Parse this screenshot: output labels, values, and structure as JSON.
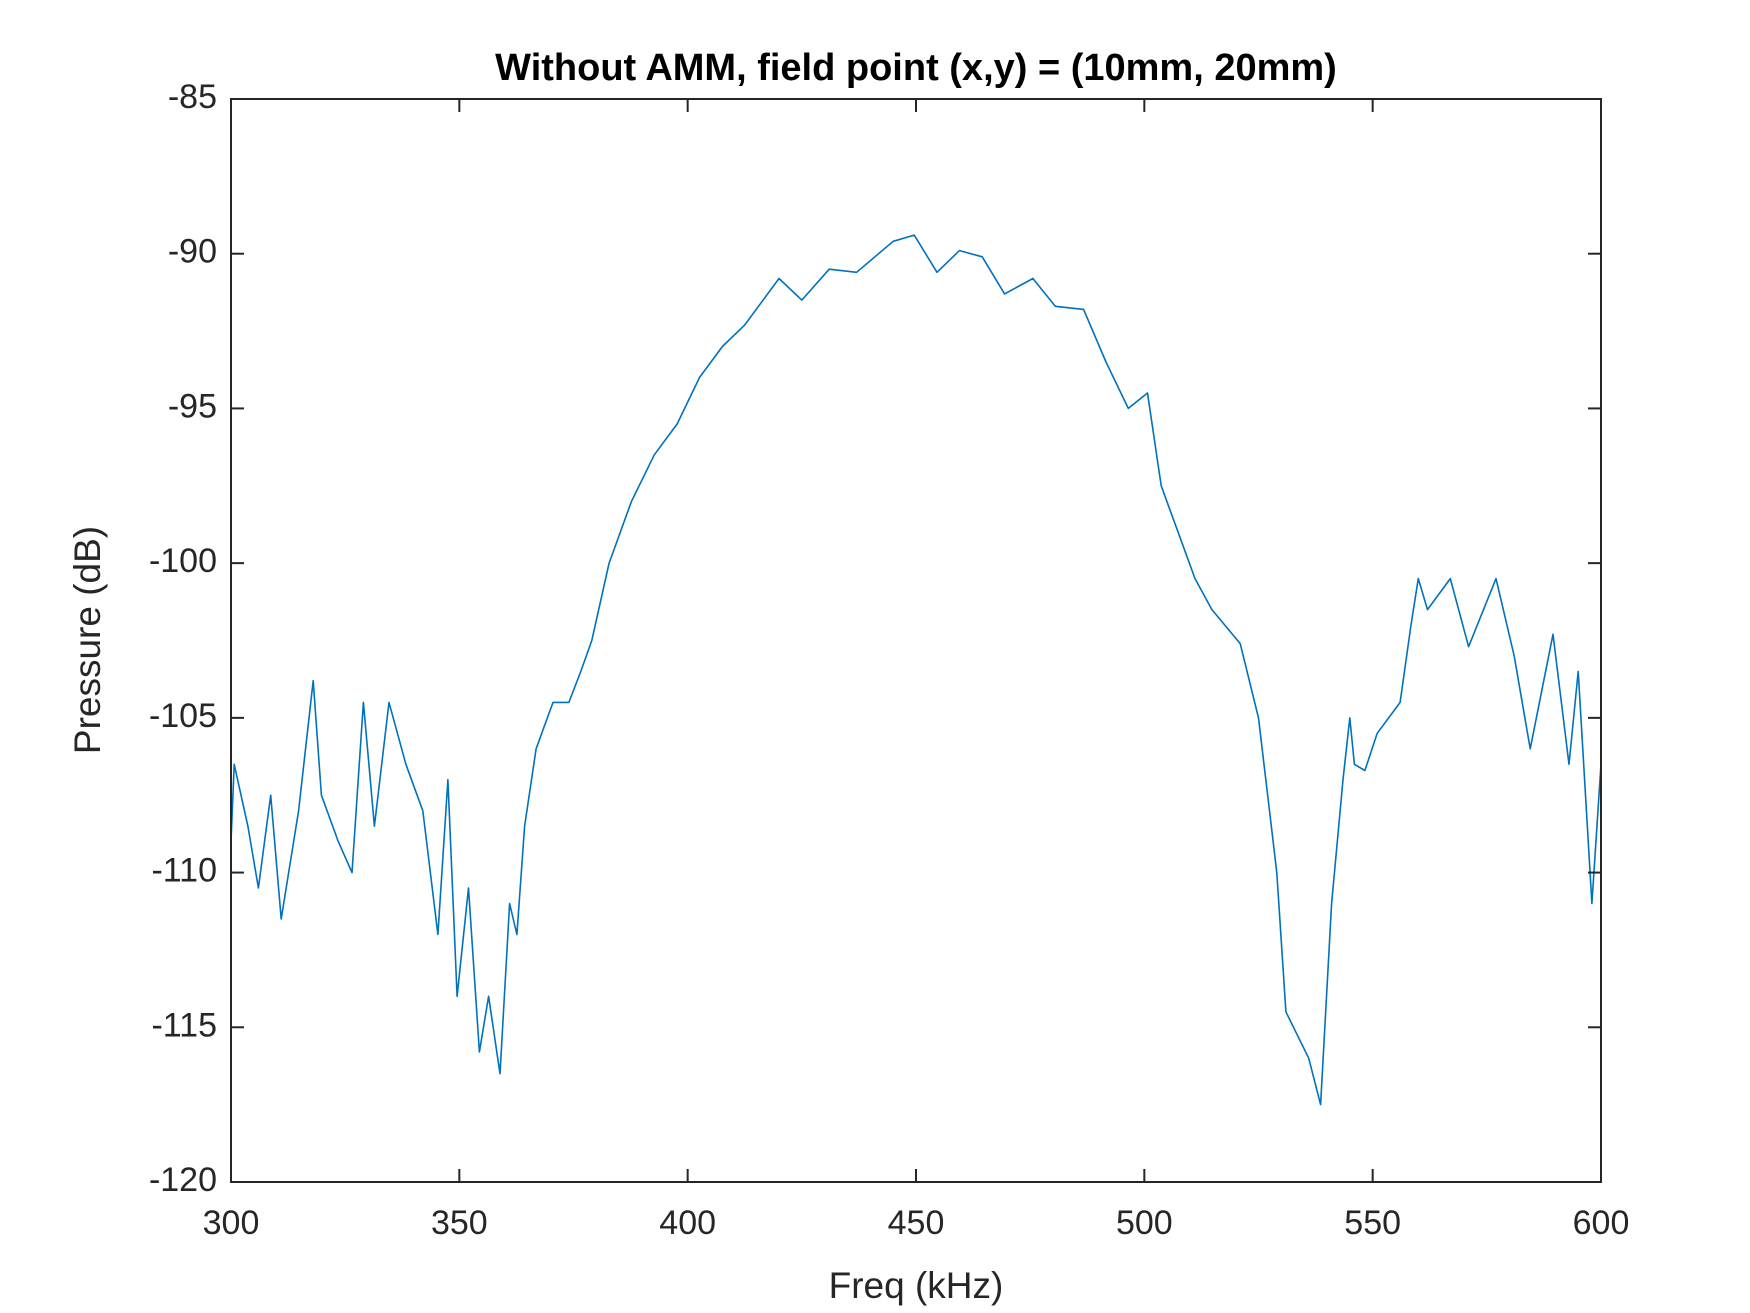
{
  "chart_data": {
    "type": "line",
    "title": "Without AMM, field point (x,y) = (10mm, 20mm)",
    "xlabel": "Freq (kHz)",
    "ylabel": "Pressure (dB)",
    "xlim": [
      300,
      600
    ],
    "ylim": [
      -120,
      -85
    ],
    "xticks": [
      300,
      350,
      400,
      450,
      500,
      550,
      600
    ],
    "yticks": [
      -120,
      -115,
      -110,
      -105,
      -100,
      -95,
      -90,
      -85
    ],
    "grid": false,
    "series": [
      {
        "color": "#0072bd",
        "x": [
          300,
          300.7,
          303.7,
          306,
          308.7,
          311,
          314.8,
          318,
          319.8,
          323.5,
          326.5,
          329,
          331.4,
          334.6,
          338.3,
          342,
          345.3,
          347.5,
          349.5,
          352,
          354.4,
          356.4,
          358.9,
          361,
          362.6,
          364.3,
          366.8,
          370.5,
          374,
          376.6,
          379,
          382.8,
          387.7,
          392.7,
          397.7,
          402.6,
          407.6,
          412.5,
          420,
          425,
          431,
          437,
          445,
          449.6,
          454.6,
          459.5,
          464.5,
          469.4,
          475.6,
          480.5,
          486.7,
          491.6,
          496.5,
          500.7,
          503.7,
          507.4,
          511.1,
          514.8,
          521,
          525,
          529,
          531,
          536,
          538.6,
          541,
          543.5,
          545,
          546,
          548.3,
          551,
          556,
          558.4,
          560,
          562,
          567,
          571,
          577,
          581,
          584.5,
          589.5,
          593,
          595,
          598,
          600
        ],
        "values": [
          -109,
          -106.5,
          -108.5,
          -110.5,
          -107.5,
          -111.5,
          -108,
          -103.8,
          -107.5,
          -109,
          -110,
          -104.5,
          -108.5,
          -104.5,
          -106.5,
          -108,
          -112,
          -107,
          -114,
          -110.5,
          -115.8,
          -114,
          -116.5,
          -111,
          -112,
          -108.5,
          -106,
          -104.5,
          -104.5,
          -103.5,
          -102.5,
          -100,
          -98,
          -96.5,
          -95.5,
          -94,
          -93,
          -92.3,
          -90.8,
          -91.5,
          -90.5,
          -90.6,
          -89.6,
          -89.4,
          -90.6,
          -89.9,
          -90.1,
          -91.3,
          -90.8,
          -91.7,
          -91.8,
          -93.5,
          -95,
          -94.5,
          -97.5,
          -99,
          -100.5,
          -101.5,
          -102.6,
          -105,
          -110,
          -114.5,
          -116,
          -117.5,
          -111,
          -107,
          -105,
          -106.5,
          -106.7,
          -105.5,
          -104.5,
          -102,
          -100.5,
          -101.5,
          -100.5,
          -102.7,
          -100.5,
          -103,
          -106,
          -102.3,
          -106.5,
          -103.5,
          -111,
          -106.5
        ]
      }
    ]
  }
}
